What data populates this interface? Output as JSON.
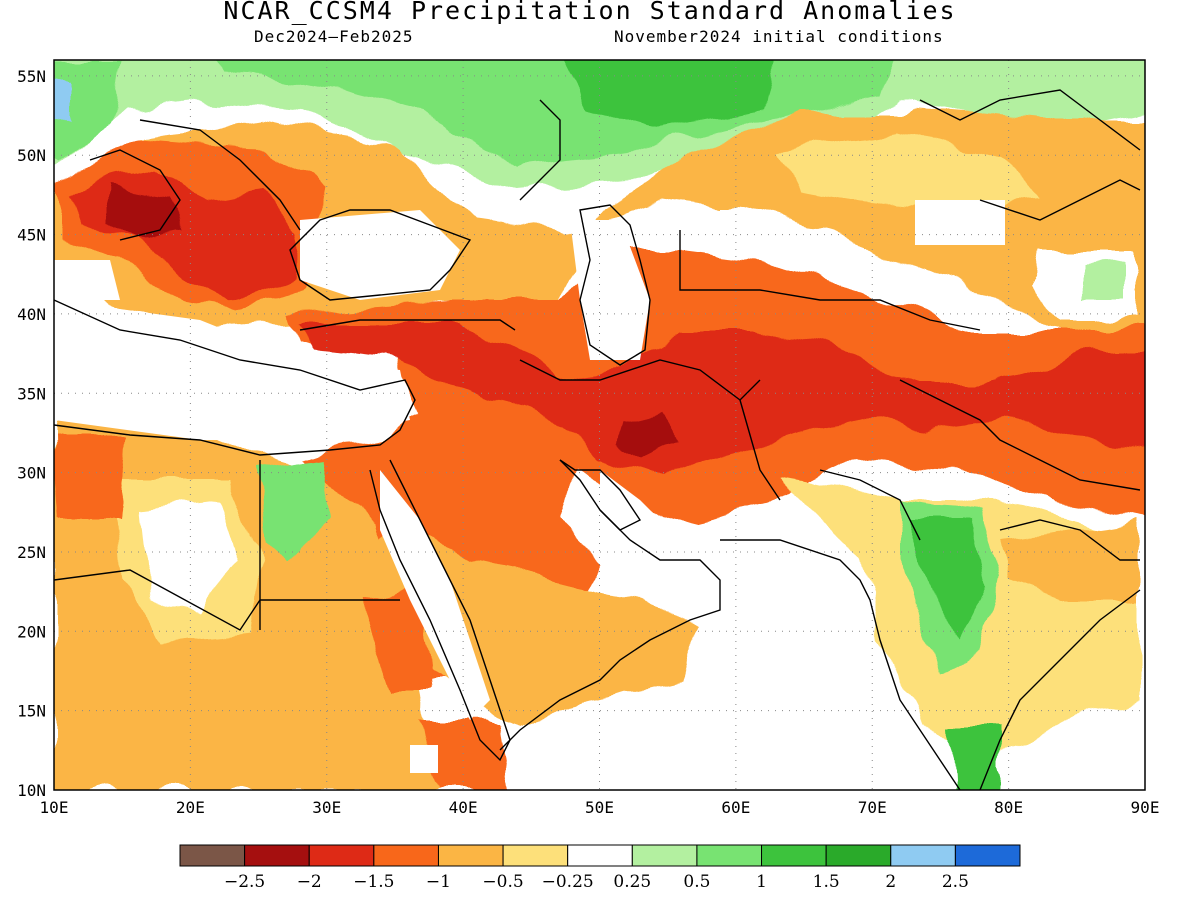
{
  "title": "NCAR_CCSM4 Precipitation Standard Anomalies",
  "subtitle_left": "Dec2024–Feb2025",
  "subtitle_right": "November2024 initial conditions",
  "axes": {
    "lon_range": [
      10,
      90
    ],
    "lat_range": [
      10,
      56
    ],
    "lon_ticks": [
      "10E",
      "20E",
      "30E",
      "40E",
      "50E",
      "60E",
      "70E",
      "80E",
      "90E"
    ],
    "lat_ticks": [
      "10N",
      "15N",
      "20N",
      "25N",
      "30N",
      "35N",
      "40N",
      "45N",
      "50N",
      "55N"
    ],
    "grid": "dotted"
  },
  "colorbar": {
    "colors": [
      "#7b5647",
      "#a50f0f",
      "#de2a16",
      "#f8671a",
      "#fbb544",
      "#fde07a",
      "#ffffff",
      "#b3f0a0",
      "#78e372",
      "#3dc33d",
      "#2aaa2a",
      "#8fcbf2",
      "#1d6ad9"
    ],
    "labels": [
      "−2.5",
      "−2",
      "−1.5",
      "−1",
      "−0.5",
      "−0.25",
      "0.25",
      "0.5",
      "1",
      "1.5",
      "2",
      "2.5"
    ]
  }
}
